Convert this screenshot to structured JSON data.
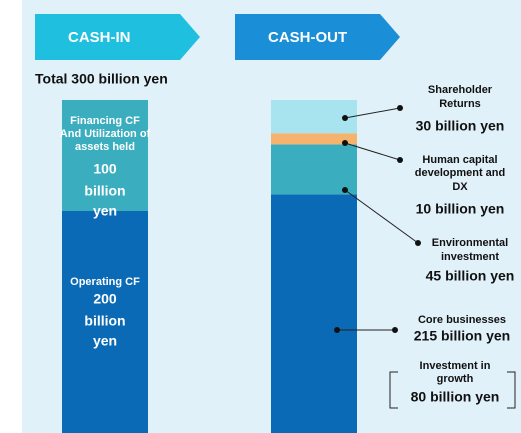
{
  "chart_data": {
    "type": "stacked_bar",
    "title": "Total 300 billion yen",
    "ylim": [
      0,
      300
    ],
    "bars": [
      {
        "category": "CASH-IN",
        "color": "#1fbfdf",
        "segments": [
          {
            "name_lines": [
              "Operating CF"
            ],
            "value": 200,
            "value_label_lines": [
              "200",
              "billion",
              "yen"
            ],
            "color": "#0a6ab6"
          },
          {
            "name_lines": [
              "Financing CF",
              "And Utilization of",
              "assets held"
            ],
            "value": 100,
            "value_label_lines": [
              "100",
              "billion",
              "yen"
            ],
            "color": "#3aaebf"
          }
        ]
      },
      {
        "category": "CASH-OUT",
        "color": "#1a8ed6",
        "segments": [
          {
            "name_lines": [
              "Core businesses"
            ],
            "value": 215,
            "value_label_lines": [
              "215 billion yen"
            ],
            "color": "#0a6ab6"
          },
          {
            "name_lines": [
              "Environmental",
              "investment"
            ],
            "value": 45,
            "value_label_lines": [
              "45 billion yen"
            ],
            "color": "#3aaebf"
          },
          {
            "name_lines": [
              "Human capital",
              "development and",
              "DX"
            ],
            "value": 10,
            "value_label_lines": [
              "10 billion yen"
            ],
            "color": "#f6b36e"
          },
          {
            "name_lines": [
              "Shareholder",
              "Returns"
            ],
            "value": 30,
            "value_label_lines": [
              "30 billion yen"
            ],
            "color": "#a8e4f0"
          }
        ]
      }
    ],
    "annotation": {
      "lines": [
        "Investment in",
        "growth"
      ],
      "label": "80 billion yen"
    }
  }
}
